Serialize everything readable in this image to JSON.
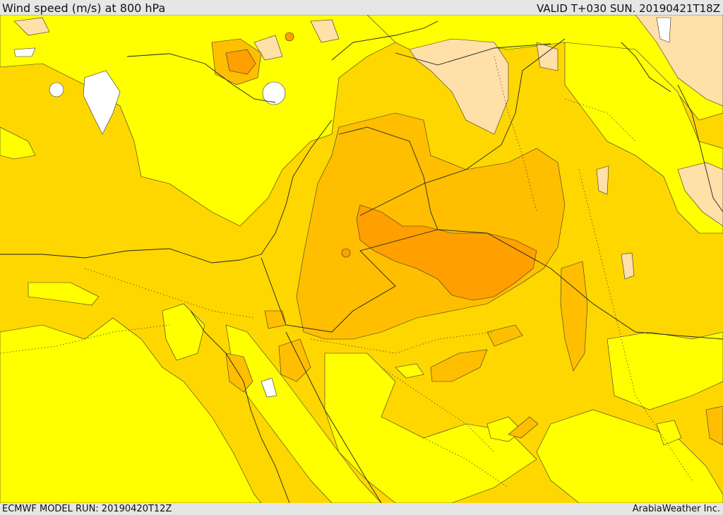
{
  "header": {
    "title": "Wind speed (m/s) at 800 hPa",
    "valid": "VALID T+030 SUN. 20190421T18Z"
  },
  "footer": {
    "run": "ECMWF MODEL RUN: 20190420T12Z",
    "brand": "ArabiaWeather Inc."
  },
  "colors": {
    "calm_white": "#ffffff",
    "peach": "#ffe0a8",
    "bright_yellow": "#ffff00",
    "gold": "#ffd700",
    "light_orange": "#ffbf00",
    "orange": "#ffa500",
    "deep_orange": "#ff9a00"
  }
}
